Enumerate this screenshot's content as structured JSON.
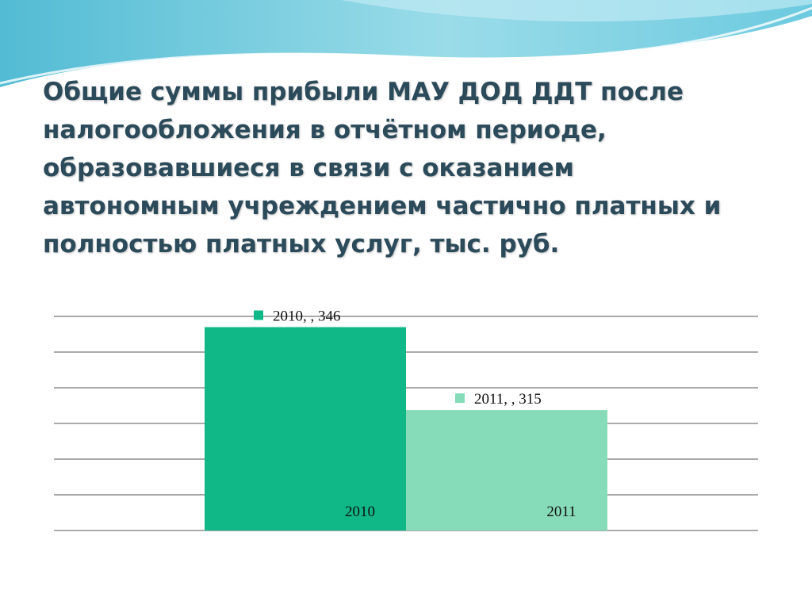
{
  "slide": {
    "title": "Общие суммы прибыли МАУ ДОД ДДТ после налогообложения в отчётном периоде, образовавшиеся в связи с оказанием автономным учреждением частично платных и полностью платных услуг, тыс. руб."
  },
  "chart_data": {
    "type": "bar",
    "title": "",
    "xlabel": "",
    "ylabel": "",
    "categories": [
      "2010",
      "2011"
    ],
    "values": [
      346,
      315
    ],
    "data_labels": [
      "2010, , 346",
      "2011, , 315"
    ],
    "colors": [
      "#11b887",
      "#86dbb8"
    ],
    "ylim": [
      270,
      350
    ],
    "gridlines": true,
    "legend": "none"
  }
}
